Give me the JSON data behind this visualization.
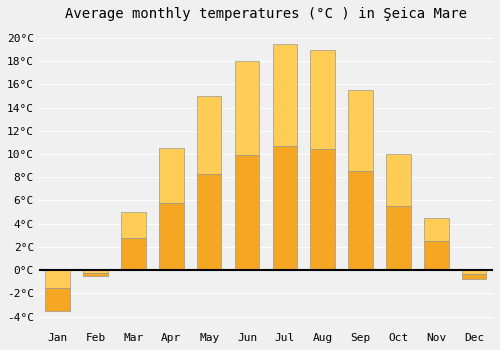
{
  "title": "Average monthly temperatures (°C ) in Şeica Mare",
  "months": [
    "Jan",
    "Feb",
    "Mar",
    "Apr",
    "May",
    "Jun",
    "Jul",
    "Aug",
    "Sep",
    "Oct",
    "Nov",
    "Dec"
  ],
  "values": [
    -3.5,
    -0.5,
    5.0,
    10.5,
    15.0,
    18.0,
    19.5,
    19.0,
    15.5,
    10.0,
    4.5,
    -0.8
  ],
  "bar_color": "#FFA726",
  "bar_edge_color": "#888888",
  "ylim": [
    -5,
    21
  ],
  "ytick_min": -4,
  "ytick_max": 20,
  "ytick_step": 2,
  "background_color": "#f0f0f0",
  "grid_color": "#ffffff",
  "title_fontsize": 10,
  "tick_fontsize": 8,
  "bar_width": 0.65
}
